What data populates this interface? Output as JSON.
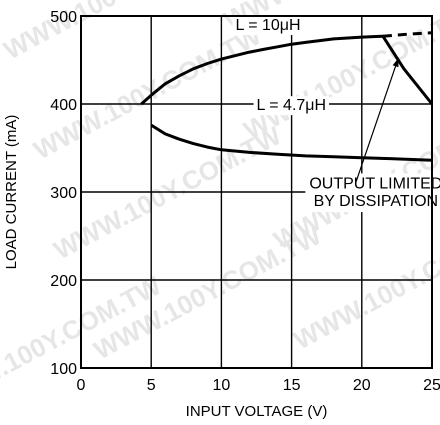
{
  "chart_data": {
    "type": "line",
    "xlabel": "INPUT VOLTAGE (V)",
    "ylabel": "LOAD CURRENT (mA)",
    "xlim": [
      0,
      25
    ],
    "ylim": [
      100,
      500
    ],
    "x_ticks": [
      0,
      5,
      10,
      15,
      20,
      25
    ],
    "y_ticks": [
      100,
      200,
      300,
      400,
      500
    ],
    "x_tick_labels": [
      "0",
      "5",
      "10",
      "15",
      "20",
      "25"
    ],
    "y_tick_labels": [
      "100",
      "200",
      "300",
      "400",
      "500"
    ],
    "grid": true,
    "series": [
      {
        "name": "L = 10μH",
        "points": [
          [
            4.3,
            400
          ],
          [
            5,
            410
          ],
          [
            6,
            423
          ],
          [
            7,
            432
          ],
          [
            8,
            440
          ],
          [
            9,
            446
          ],
          [
            10,
            451
          ],
          [
            11,
            455
          ],
          [
            12,
            459
          ],
          [
            13,
            462
          ],
          [
            14,
            465
          ],
          [
            15,
            468
          ],
          [
            16,
            470
          ],
          [
            17,
            472
          ],
          [
            18,
            474
          ],
          [
            19,
            475
          ],
          [
            20,
            476
          ],
          [
            21.5,
            477
          ],
          [
            23,
            440
          ],
          [
            25,
            400
          ]
        ],
        "extension": [
          [
            21.5,
            477
          ],
          [
            23,
            479
          ],
          [
            25,
            481
          ]
        ],
        "extension_style": "dashed"
      },
      {
        "name": "L = 4.7μH",
        "points": [
          [
            5,
            376
          ],
          [
            6,
            366
          ],
          [
            7,
            360
          ],
          [
            8,
            355
          ],
          [
            9,
            351
          ],
          [
            10,
            348
          ],
          [
            12,
            345
          ],
          [
            14,
            343
          ],
          [
            16,
            341
          ],
          [
            18,
            340
          ],
          [
            20,
            339
          ],
          [
            22,
            338
          ],
          [
            25,
            336
          ]
        ]
      }
    ],
    "annotations": [
      {
        "text": "OUTPUT LIMITED",
        "x": 21,
        "y": 304
      },
      {
        "text": "BY DISSIPATION",
        "x": 21,
        "y": 284
      }
    ],
    "watermark": "WWW.100Y.COM.TW"
  }
}
